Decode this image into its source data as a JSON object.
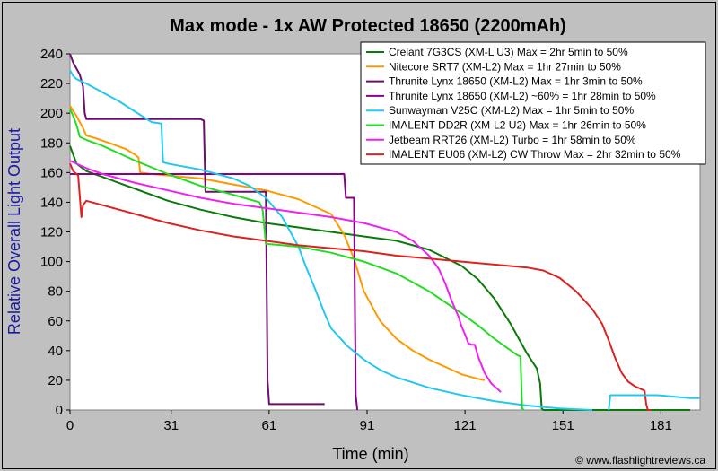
{
  "chart_data": {
    "type": "line",
    "title": "Max mode - 1x AW Protected 18650 (2200mAh)",
    "xlabel": "Time (min)",
    "ylabel": "Relative Overall Light Output",
    "xlim": [
      0,
      193
    ],
    "ylim": [
      0,
      240
    ],
    "xticks": [
      0,
      31,
      61,
      91,
      121,
      151,
      181
    ],
    "yticks": [
      0,
      20,
      40,
      60,
      80,
      100,
      120,
      140,
      160,
      180,
      200,
      220,
      240
    ],
    "grid": false,
    "legend_position": "top-right",
    "credit": "© www.flashlightreviews.ca",
    "series": [
      {
        "name": "Crelant 7G3CS (XM-L U3) Max = 2hr 5min to 50%",
        "color": "#0a7a0a",
        "x": [
          0,
          2,
          5,
          10,
          20,
          30,
          40,
          50,
          60,
          70,
          80,
          90,
          100,
          110,
          120,
          125,
          130,
          135,
          140,
          143,
          144,
          144.5,
          145,
          150,
          160,
          170,
          180,
          190
        ],
        "y": [
          178,
          166,
          161,
          157,
          149,
          141,
          135,
          130,
          126,
          123,
          120,
          117,
          114,
          108,
          97,
          88,
          75,
          58,
          38,
          28,
          18,
          1,
          0,
          0,
          0,
          0,
          0,
          0
        ]
      },
      {
        "name": "Nitecore SRT7 (XM-L2) Max = 1hr 27min to 50%",
        "color": "#ff9900",
        "x": [
          0,
          2,
          3,
          4,
          5,
          8,
          12,
          17,
          20,
          21,
          21.5,
          25,
          30,
          40,
          50,
          60,
          70,
          80,
          84,
          87,
          90,
          95,
          100,
          105,
          110,
          115,
          120,
          125,
          127
        ],
        "y": [
          205,
          198,
          194,
          190,
          185,
          183,
          180,
          176,
          172,
          170,
          160,
          159,
          158,
          156,
          152,
          148,
          142,
          132,
          118,
          102,
          80,
          60,
          48,
          40,
          34,
          29,
          24,
          21,
          20
        ]
      },
      {
        "name": "Thrunite Lynx 18650 (XM-L2) Max = 1hr 3min to 50%",
        "color": "#6b0f6b",
        "x": [
          0,
          1,
          2,
          3,
          4,
          4.5,
          5,
          10,
          20,
          30,
          40,
          41,
          41.5,
          45,
          50,
          55,
          59,
          60,
          60.5,
          61,
          65,
          70,
          75,
          78
        ],
        "y": [
          240,
          234,
          230,
          226,
          218,
          200,
          196,
          196,
          196,
          196,
          196,
          195,
          147,
          147,
          147,
          147,
          147,
          147,
          20,
          4,
          4,
          4,
          4,
          4
        ]
      },
      {
        "name": "Thrunite Lynx 18650 (XM-L2) ~60% = 1hr 28min to 50%",
        "color": "#880088",
        "x": [
          0,
          5,
          10,
          20,
          30,
          40,
          50,
          60,
          70,
          80,
          84,
          84.5,
          86,
          87,
          87.5,
          88
        ],
        "y": [
          159,
          159,
          159,
          159,
          159,
          159,
          159,
          159,
          159,
          159,
          159,
          143,
          143,
          143,
          10,
          0
        ]
      },
      {
        "name": "Sunwayman V25C (XM-L2) Max = 1hr 5min to 50%",
        "color": "#22c8ee",
        "x": [
          0,
          1,
          2,
          3,
          5,
          10,
          15,
          20,
          25,
          28,
          28.5,
          30,
          35,
          40,
          45,
          50,
          55,
          60,
          65,
          70,
          72,
          75,
          78,
          80,
          85,
          90,
          95,
          100,
          110,
          120,
          130,
          140,
          150,
          160
        ],
        "y": [
          229,
          225,
          223,
          222,
          220,
          214,
          208,
          201,
          194,
          193,
          167,
          166,
          164,
          162,
          159,
          156,
          151,
          143,
          130,
          110,
          98,
          82,
          65,
          55,
          43,
          34,
          27,
          22,
          15,
          10,
          6,
          3,
          1,
          0
        ]
      },
      {
        "name": "IMALENT DD2R (XM-L2 U2) Max = 1hr 26min to 50%",
        "color": "#22dd22",
        "x": [
          0,
          1,
          2,
          3,
          5,
          10,
          20,
          30,
          40,
          50,
          58,
          59,
          60,
          70,
          80,
          90,
          100,
          110,
          120,
          125,
          130,
          137,
          138,
          138.5,
          139
        ],
        "y": [
          203,
          198,
          192,
          184,
          182,
          178,
          168,
          159,
          151,
          145,
          140,
          135,
          112,
          110,
          106,
          100,
          92,
          80,
          65,
          57,
          48,
          37,
          36,
          1,
          0
        ]
      },
      {
        "name": "Jetbeam RRT26 (XM-L2) Turbo = 1hr 58min to 50%",
        "color": "#ee22ee",
        "x": [
          0,
          5,
          10,
          20,
          30,
          40,
          50,
          60,
          70,
          80,
          90,
          100,
          105,
          110,
          113,
          115,
          117,
          119,
          120,
          121,
          122,
          123,
          124,
          125,
          127,
          129,
          130,
          131,
          132
        ],
        "y": [
          168,
          163,
          159,
          153,
          148,
          143,
          139,
          136,
          133,
          130,
          126,
          120,
          114,
          104,
          95,
          85,
          73,
          63,
          56,
          51,
          45,
          44,
          44,
          36,
          25,
          18,
          16,
          14,
          12
        ]
      },
      {
        "name": "IMALENT EU06 (XM-L2) CW Throw Max = 2hr 32min to 50%",
        "color": "#dd2222",
        "x": [
          0,
          1,
          2,
          2.5,
          3,
          3.5,
          4,
          5,
          10,
          20,
          30,
          40,
          50,
          60,
          70,
          80,
          90,
          100,
          110,
          120,
          130,
          140,
          145,
          150,
          155,
          160,
          163,
          165,
          167,
          169,
          171,
          173,
          175,
          176,
          176.5,
          177,
          178
        ],
        "y": [
          166,
          161,
          159,
          158,
          144,
          130,
          138,
          141,
          138,
          132,
          126,
          121,
          117,
          114,
          111,
          109,
          107,
          104,
          102,
          100,
          98,
          96,
          94,
          89,
          80,
          68,
          58,
          47,
          35,
          25,
          19,
          16,
          14,
          13,
          4,
          0,
          0
        ]
      },
      {
        "name": "",
        "color": "#22c8ee",
        "x": [
          165,
          165.5,
          170,
          175,
          180,
          185,
          190,
          193
        ],
        "y": [
          0,
          10,
          10,
          10,
          10,
          9,
          8,
          8
        ]
      }
    ]
  }
}
